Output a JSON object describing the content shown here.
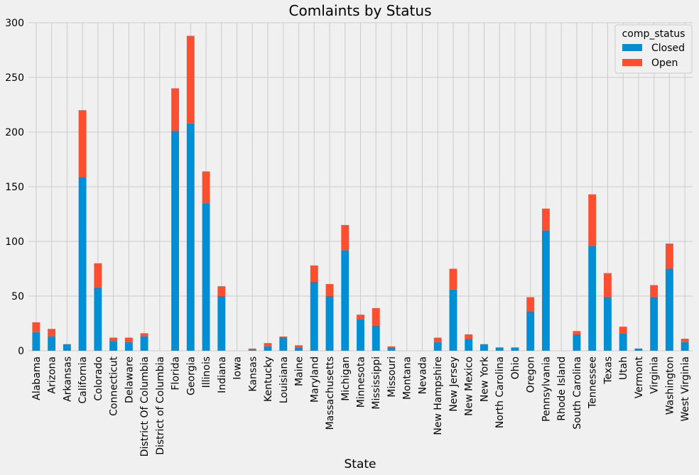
{
  "chart_data": {
    "type": "bar",
    "stacked": true,
    "title": "Comlaints by Status",
    "xlabel": "State",
    "ylabel": "",
    "ylim": [
      0,
      300
    ],
    "yticks": [
      0,
      50,
      100,
      150,
      200,
      250,
      300
    ],
    "grid": true,
    "legend": {
      "title": "comp_status",
      "placement": "top-right"
    },
    "categories": [
      "Alabama",
      "Arizona",
      "Arkansas",
      "California",
      "Colorado",
      "Connecticut",
      "Delaware",
      "District Of Columbia",
      "District of Columbia",
      "Florida",
      "Georgia",
      "Illinois",
      "Indiana",
      "Iowa",
      "Kansas",
      "Kentucky",
      "Louisiana",
      "Maine",
      "Maryland",
      "Massachusetts",
      "Michigan",
      "Minnesota",
      "Mississippi",
      "Missouri",
      "Montana",
      "Nevada",
      "New Hampshire",
      "New Jersey",
      "New Mexico",
      "New York",
      "North Carolina",
      "Ohio",
      "Oregon",
      "Pennsylvania",
      "Rhode Island",
      "South Carolina",
      "Tennessee",
      "Texas",
      "Utah",
      "Vermont",
      "Virginia",
      "Washington",
      "West Virginia"
    ],
    "series": [
      {
        "name": "Closed",
        "color": "#008fd5",
        "values": [
          17,
          13,
          6,
          159,
          58,
          9,
          8,
          13,
          0,
          201,
          208,
          135,
          50,
          0,
          1,
          4,
          12,
          3,
          63,
          50,
          92,
          29,
          23,
          3,
          0,
          0,
          8,
          56,
          11,
          6,
          3,
          3,
          36,
          110,
          0,
          15,
          96,
          49,
          16,
          2,
          49,
          75,
          8
        ]
      },
      {
        "name": "Open",
        "color": "#fc4f30",
        "values": [
          9,
          7,
          0,
          61,
          22,
          3,
          4,
          3,
          0,
          39,
          80,
          29,
          9,
          0,
          1,
          3,
          1,
          2,
          15,
          11,
          23,
          4,
          16,
          1,
          0,
          0,
          4,
          19,
          4,
          0,
          0,
          0,
          13,
          20,
          0,
          3,
          47,
          22,
          6,
          0,
          11,
          23,
          3
        ]
      }
    ]
  }
}
